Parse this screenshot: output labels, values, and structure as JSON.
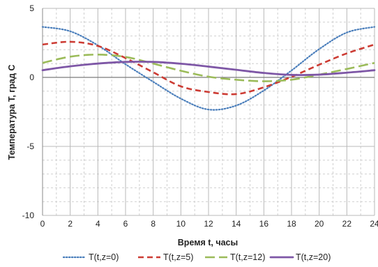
{
  "chart_data": {
    "type": "line",
    "title": "",
    "xlabel": "Время t, часы",
    "ylabel": "Температура T, град C",
    "xlim": [
      0,
      24
    ],
    "ylim": [
      -10,
      5
    ],
    "xticks": [
      0,
      2,
      4,
      6,
      8,
      10,
      12,
      14,
      16,
      18,
      20,
      22,
      24
    ],
    "yticks": [
      5,
      0,
      -5,
      -10
    ],
    "grid": true,
    "legend_position": "bottom",
    "x": [
      0,
      2,
      4,
      6,
      8,
      10,
      12,
      14,
      16,
      18,
      20,
      22,
      24
    ],
    "series": [
      {
        "name": "T(t,z=0)",
        "color": "#4a7ebb",
        "dash": "dotted",
        "values": [
          3.66,
          3.34,
          2.32,
          0.95,
          -0.32,
          -1.54,
          -2.33,
          -2.04,
          -0.95,
          0.5,
          2.05,
          3.25,
          3.66
        ]
      },
      {
        "name": "T(t,z=5)",
        "color": "#cc3b33",
        "dash": "dashed",
        "values": [
          2.38,
          2.58,
          2.28,
          1.4,
          0.37,
          -0.65,
          -1.06,
          -1.21,
          -0.72,
          0.04,
          0.92,
          1.74,
          2.38
        ]
      },
      {
        "name": "T(t,z=12)",
        "color": "#9bbb59",
        "dash": "longdash",
        "values": [
          1.05,
          1.5,
          1.65,
          1.48,
          1.0,
          0.48,
          0.05,
          -0.17,
          -0.28,
          -0.17,
          0.2,
          0.61,
          1.05
        ]
      },
      {
        "name": "T(t,z=20)",
        "color": "#7e57a6",
        "dash": "solid",
        "values": [
          0.52,
          0.8,
          1.0,
          1.12,
          1.12,
          0.99,
          0.78,
          0.55,
          0.32,
          0.18,
          0.2,
          0.34,
          0.52
        ]
      }
    ]
  }
}
